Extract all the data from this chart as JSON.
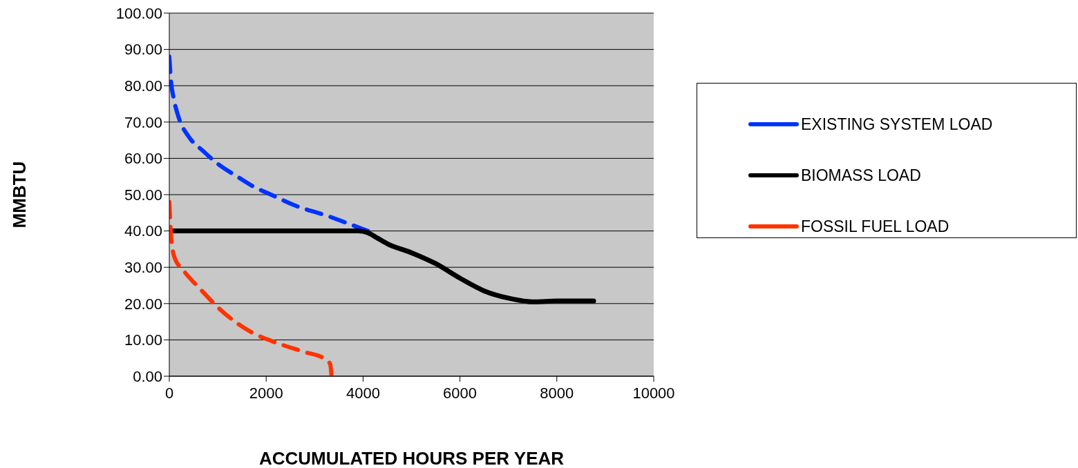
{
  "chart_data": {
    "type": "line",
    "xlabel": "ACCUMULATED HOURS PER YEAR",
    "ylabel": "MMBTU",
    "xlim": [
      0,
      10000
    ],
    "xticks": [
      0,
      2000,
      4000,
      6000,
      8000,
      10000
    ],
    "ylim": [
      0,
      100
    ],
    "yticks": [
      {
        "value": 0,
        "label": "0.00"
      },
      {
        "value": 10,
        "label": "10.00"
      },
      {
        "value": 20,
        "label": "20.00"
      },
      {
        "value": 30,
        "label": "30.00"
      },
      {
        "value": 40,
        "label": "40.00"
      },
      {
        "value": 50,
        "label": "50.00"
      },
      {
        "value": 60,
        "label": "60.00"
      },
      {
        "value": 70,
        "label": "70.00"
      },
      {
        "value": 80,
        "label": "80.00"
      },
      {
        "value": 90,
        "label": "90.00"
      },
      {
        "value": 100,
        "label": "100.00"
      }
    ],
    "grid": "y",
    "legend": "right",
    "marker": "none",
    "series": [
      {
        "name": "EXISTING SYSTEM LOAD",
        "color": "#0033ff",
        "line_style": "dashed",
        "x": [
          0,
          30,
          100,
          200,
          400,
          700,
          1000,
          1400,
          1700,
          2100,
          2600,
          3300,
          3800,
          4200
        ],
        "values": [
          88,
          82,
          76,
          71,
          66,
          62,
          58.5,
          55,
          52.5,
          50,
          47,
          44,
          41.5,
          39.5
        ]
      },
      {
        "name": "BIOMASS LOAD",
        "color": "#000000",
        "line_style": "solid",
        "x": [
          0,
          1000,
          2000,
          3000,
          3900,
          4100,
          4300,
          4500,
          5000,
          5500,
          6000,
          6500,
          7000,
          7500,
          8000,
          8760
        ],
        "values": [
          40,
          40,
          40,
          40,
          40,
          39.5,
          38,
          36.5,
          34,
          31,
          27,
          23.5,
          21.5,
          20.5,
          20.7,
          20.7
        ]
      },
      {
        "name": "FOSSIL FUEL LOAD",
        "color": "#ff3300",
        "line_style": "dashed",
        "x": [
          0,
          30,
          100,
          300,
          640,
          1040,
          1710,
          2110,
          2780,
          3210,
          3320,
          3350
        ],
        "values": [
          48,
          40,
          33,
          29,
          24,
          18.5,
          12,
          9.7,
          6.7,
          4.8,
          3.4,
          0
        ]
      }
    ]
  }
}
